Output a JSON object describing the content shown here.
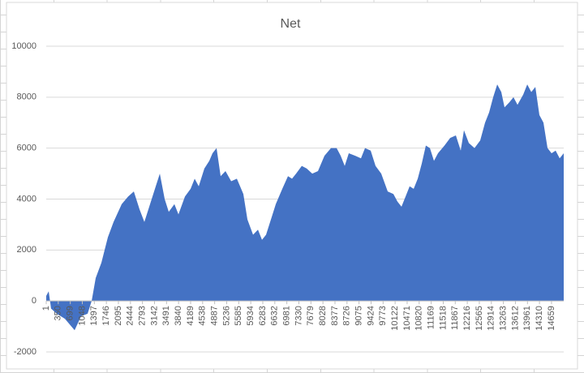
{
  "chart_data": {
    "type": "area",
    "title": "Net",
    "color": "#4472c4",
    "grid": true,
    "x": [
      1,
      72,
      142,
      307,
      542,
      824,
      1013,
      1201,
      1319,
      1436,
      1601,
      1789,
      1954,
      2190,
      2377,
      2542,
      2707,
      2848,
      3013,
      3178,
      3296,
      3437,
      3555,
      3719,
      3837,
      4025,
      4189,
      4307,
      4425,
      4589,
      4731,
      4825,
      4942,
      5060,
      5201,
      5366,
      5531,
      5719,
      5837,
      6001,
      6143,
      6260,
      6378,
      6543,
      6660,
      6849,
      7014,
      7131,
      7249,
      7414,
      7555,
      7719,
      7884,
      8072,
      8261,
      8425,
      8543,
      8660,
      8778,
      8966,
      9131,
      9249,
      9413,
      9554,
      9719,
      9907,
      10072,
      10190,
      10307,
      10425,
      10543,
      10660,
      10778,
      10896,
      11013,
      11131,
      11249,
      11366,
      11554,
      11719,
      11884,
      12025,
      12119,
      12260,
      12425,
      12590,
      12731,
      12849,
      12966,
      13084,
      13202,
      13296,
      13437,
      13555,
      13672,
      13837,
      13955,
      14072,
      14190,
      14307,
      14425,
      14543,
      14660,
      14778,
      14895,
      15013
    ],
    "values": [
      200,
      380,
      -300,
      -500,
      -700,
      -1150,
      -600,
      -500,
      0,
      900,
      1500,
      2500,
      3100,
      3800,
      4100,
      4300,
      3600,
      3100,
      3800,
      4500,
      5000,
      4000,
      3500,
      3800,
      3400,
      4100,
      4400,
      4800,
      4500,
      5200,
      5500,
      5800,
      6000,
      4900,
      5100,
      4700,
      4800,
      4200,
      3200,
      2600,
      2800,
      2400,
      2600,
      3300,
      3800,
      4400,
      4900,
      4800,
      5000,
      5300,
      5200,
      5000,
      5100,
      5700,
      6000,
      6000,
      5700,
      5300,
      5800,
      5700,
      5600,
      6000,
      5900,
      5300,
      5000,
      4300,
      4200,
      3900,
      3700,
      4100,
      4500,
      4400,
      4800,
      5400,
      6100,
      6000,
      5500,
      5800,
      6100,
      6400,
      6500,
      5900,
      6700,
      6200,
      6000,
      6300,
      7000,
      7400,
      8000,
      8500,
      8200,
      7600,
      7800,
      8000,
      7700,
      8100,
      8500,
      8200,
      8400,
      7300,
      7000,
      6000,
      5800,
      5900,
      5600,
      5800
    ],
    "xlim": [
      1,
      15013
    ],
    "xticks": [
      1,
      350,
      699,
      1048,
      1397,
      1746,
      2095,
      2444,
      2793,
      3142,
      3491,
      3840,
      4189,
      4538,
      4887,
      5236,
      5585,
      5934,
      6283,
      6632,
      6981,
      7330,
      7679,
      8028,
      8377,
      8726,
      9075,
      9424,
      9773,
      10122,
      10471,
      10820,
      11169,
      11518,
      11867,
      12216,
      12565,
      12914,
      13263,
      13612,
      13961,
      14310,
      14659
    ],
    "ylim": [
      -2000,
      10000
    ],
    "yticks": [
      -2000,
      0,
      2000,
      4000,
      6000,
      8000,
      10000
    ]
  }
}
